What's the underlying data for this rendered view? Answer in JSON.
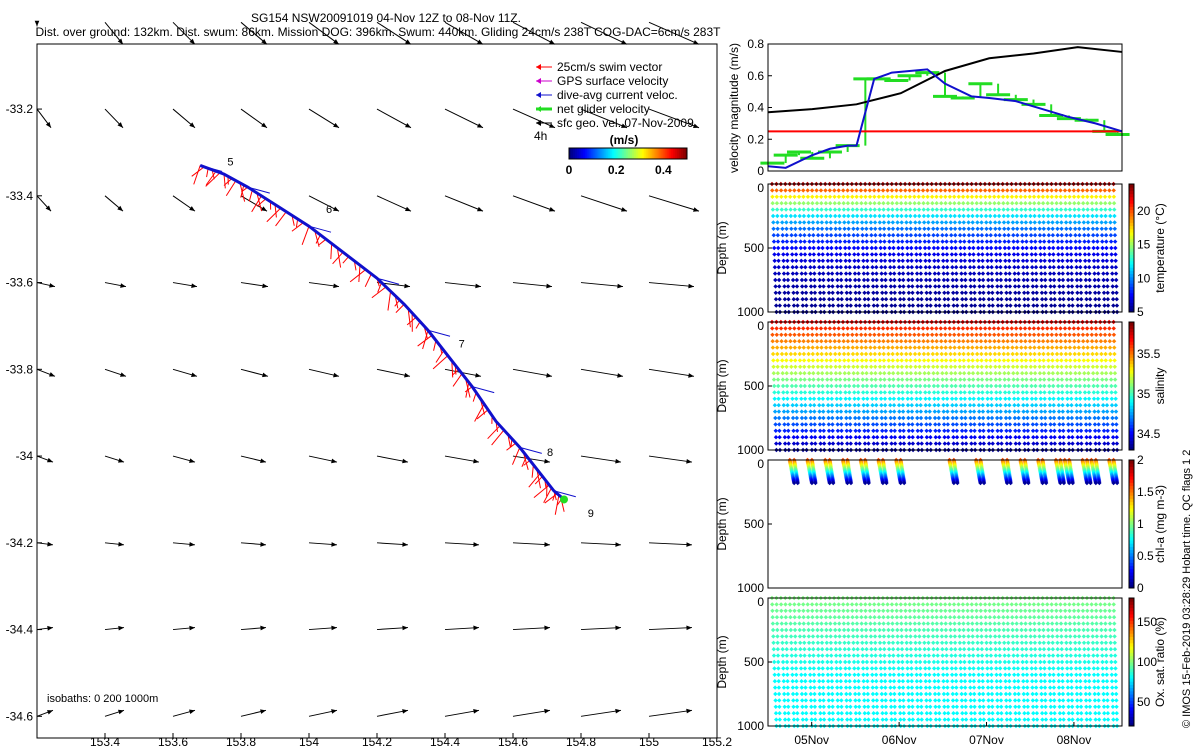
{
  "header": {
    "line1": "SG154 NSW20091019 04-Nov 12Z to 08-Nov 11Z.",
    "line2": "Dist. over ground: 132km. Dist. swum: 86km. Mission DOG: 396km. Swum: 440km. Gliding 24cm/s 238T COG-DAC=6cm/s 283T"
  },
  "credit": "© IMOS 15-Feb-2019 03:28:29 Hobart time. QC flags 1  2",
  "colors": {
    "swim": "#ff0000",
    "gps": "#cc00cc",
    "dac": "#1010cc",
    "net": "#22dd22",
    "geo": "#000000"
  },
  "chart_data": [
    {
      "id": "map",
      "type": "quiver",
      "title": "",
      "xlim": [
        153.2,
        155.2
      ],
      "ylim": [
        -34.65,
        -33.05
      ],
      "xticks": [
        153.4,
        153.6,
        153.8,
        154,
        154.2,
        154.4,
        154.6,
        154.8,
        155,
        155.2
      ],
      "xtick_labels": [
        "153.4",
        "153.6",
        "153.8",
        "154",
        "154.2",
        "154.4",
        "154.6",
        "154.8",
        "155",
        "155.2"
      ],
      "yticks": [
        -33.2,
        -33.4,
        -33.6,
        -33.8,
        -34,
        -34.2,
        -34.4,
        -34.6
      ],
      "ytick_labels": [
        "-33.2",
        "-33.4",
        "-33.6",
        "-33.8",
        "-34",
        "-34.2",
        "-34.4",
        "-34.6"
      ],
      "legend": {
        "position": "top-right",
        "items": [
          "25cm/s swim vector",
          "GPS surface velocity",
          "dive-avg current veloc.",
          "net glider velocity",
          "sfc geo. vel. 07-Nov-2009"
        ],
        "scale_label": "4h"
      },
      "colorbar": {
        "label": "(m/s)",
        "ticks": [
          "0",
          "0.2",
          "0.4"
        ],
        "range": [
          0,
          0.5
        ]
      },
      "track": [
        [
          153.68,
          -33.33
        ],
        [
          153.75,
          -33.35
        ],
        [
          153.82,
          -33.38
        ],
        [
          153.9,
          -33.42
        ],
        [
          154.0,
          -33.47
        ],
        [
          154.1,
          -33.53
        ],
        [
          154.2,
          -33.59
        ],
        [
          154.28,
          -33.65
        ],
        [
          154.35,
          -33.71
        ],
        [
          154.42,
          -33.78
        ],
        [
          154.48,
          -33.84
        ],
        [
          154.55,
          -33.92
        ],
        [
          154.62,
          -33.98
        ],
        [
          154.68,
          -34.04
        ],
        [
          154.72,
          -34.08
        ],
        [
          154.75,
          -34.1
        ]
      ],
      "day_labels": [
        {
          "text": "5",
          "lon": 153.76,
          "lat": -33.33
        },
        {
          "text": "6",
          "lon": 154.05,
          "lat": -33.44
        },
        {
          "text": "7",
          "lon": 154.44,
          "lat": -33.75
        },
        {
          "text": "8",
          "lon": 154.7,
          "lat": -34.0
        },
        {
          "text": "9",
          "lon": 154.82,
          "lat": -34.14
        }
      ],
      "isobath_label": "isobaths: 0   200  1000m"
    },
    {
      "id": "velocity",
      "type": "line",
      "ylabel": "velocity magnitude (m/s)",
      "ylim": [
        0,
        0.8
      ],
      "yticks": [
        0,
        0.2,
        0.4,
        0.6,
        0.8
      ],
      "ytick_labels": [
        "0",
        "0.2",
        "0.4",
        "0.6",
        "0.8"
      ],
      "xlim": [
        4.5,
        8.5
      ],
      "series": [
        {
          "name": "sfc geo. vel.",
          "x": [
            4.5,
            5.0,
            5.5,
            6.0,
            6.5,
            7.0,
            7.5,
            8.0,
            8.5
          ],
          "y": [
            0.37,
            0.39,
            0.42,
            0.49,
            0.63,
            0.71,
            0.74,
            0.78,
            0.75
          ]
        },
        {
          "name": "dive-avg current veloc.",
          "x": [
            4.5,
            4.7,
            5.0,
            5.2,
            5.4,
            5.5,
            5.7,
            5.9,
            6.1,
            6.3,
            6.5,
            6.8,
            7.0,
            7.3,
            7.6,
            7.9,
            8.2,
            8.5
          ],
          "y": [
            0.03,
            0.02,
            0.1,
            0.14,
            0.16,
            0.16,
            0.58,
            0.62,
            0.63,
            0.64,
            0.55,
            0.47,
            0.46,
            0.44,
            0.39,
            0.34,
            0.3,
            0.25
          ]
        },
        {
          "name": "25cm/s swim vector",
          "x": [
            4.5,
            8.5
          ],
          "y": [
            0.25,
            0.25
          ]
        },
        {
          "name": "net glider velocity",
          "x": [
            4.55,
            4.7,
            4.85,
            5.0,
            5.2,
            5.4,
            5.6,
            5.75,
            5.95,
            6.1,
            6.3,
            6.5,
            6.7,
            6.9,
            7.1,
            7.3,
            7.5,
            7.7,
            7.9,
            8.1,
            8.3,
            8.45
          ],
          "y": [
            0.05,
            0.1,
            0.12,
            0.08,
            0.12,
            0.16,
            0.58,
            0.58,
            0.57,
            0.6,
            0.62,
            0.47,
            0.46,
            0.55,
            0.48,
            0.45,
            0.42,
            0.35,
            0.33,
            0.32,
            0.25,
            0.23
          ]
        }
      ]
    },
    {
      "id": "temperature",
      "type": "scatter",
      "ylabel": "Depth (m)",
      "clabel": "temperature (°C)",
      "ylim": [
        1000,
        0
      ],
      "yticks": [
        0,
        500,
        1000
      ],
      "ytick_labels": [
        "0",
        "500",
        "1000"
      ],
      "crange": [
        5,
        24
      ],
      "cticks": [
        5,
        10,
        15,
        20
      ],
      "ctick_labels": [
        "5",
        "10",
        "15",
        "20"
      ],
      "vmin": 5,
      "vmax": 24,
      "max_depth": 1000,
      "dives": 39,
      "start_value": 23,
      "end_value": 5,
      "profile": "exp",
      "mid_value": 0.5
    },
    {
      "id": "salinity",
      "type": "scatter",
      "ylabel": "Depth (m)",
      "clabel": "salinity",
      "ylim": [
        1000,
        0
      ],
      "yticks": [
        0,
        500,
        1000
      ],
      "ytick_labels": [
        "0",
        "500",
        "1000"
      ],
      "crange": [
        34.3,
        35.9
      ],
      "cticks": [
        34.5,
        35,
        35.5
      ],
      "ctick_labels": [
        "34.5",
        "35",
        "35.5"
      ],
      "vmin": 34.3,
      "vmax": 35.9,
      "max_depth": 1000,
      "dives": 39,
      "start_value": 35.7,
      "end_value": 34.35,
      "profile": "lin",
      "mid_value": 0.5
    },
    {
      "id": "chla",
      "type": "scatter",
      "ylabel": "Depth (m)",
      "clabel": "chl-a (mg m-3)",
      "ylim": [
        1000,
        0
      ],
      "yticks": [
        0,
        500,
        1000
      ],
      "ytick_labels": [
        "0",
        "500",
        "1000"
      ],
      "crange": [
        0,
        2
      ],
      "cticks": [
        0,
        0.5,
        1,
        1.5,
        2
      ],
      "ctick_labels": [
        "0",
        "0.5",
        "1",
        "1.5",
        "2"
      ],
      "vmin": 0,
      "vmax": 2,
      "max_depth": 180,
      "dives": 39,
      "start_value": 1.6,
      "end_value": 0.05,
      "profile": "lin",
      "mid_value": 0.5,
      "active_dives": [
        2,
        4,
        6,
        8,
        10,
        12,
        14,
        20,
        23,
        26,
        28,
        30,
        32,
        33,
        35,
        36,
        38
      ]
    },
    {
      "id": "oxygen",
      "type": "scatter",
      "ylabel": "Depth (m)",
      "clabel": "Ox. sat. ratio (%)",
      "ylim": [
        1000,
        0
      ],
      "yticks": [
        0,
        500,
        1000
      ],
      "ytick_labels": [
        "0",
        "500",
        "1000"
      ],
      "crange": [
        20,
        180
      ],
      "cticks": [
        50,
        100,
        150
      ],
      "ctick_labels": [
        "50",
        "100",
        "150"
      ],
      "vmin": 20,
      "vmax": 180,
      "max_depth": 1000,
      "dives": 39,
      "start_value": 100,
      "end_value": 80,
      "profile": "oxy",
      "mid_value": 0.5
    }
  ],
  "time_axis": {
    "xlim": [
      4.5,
      8.55
    ],
    "ticks": [
      5,
      6,
      7,
      8
    ],
    "tick_labels": [
      "05Nov",
      "06Nov",
      "07Nov",
      "08Nov"
    ]
  }
}
